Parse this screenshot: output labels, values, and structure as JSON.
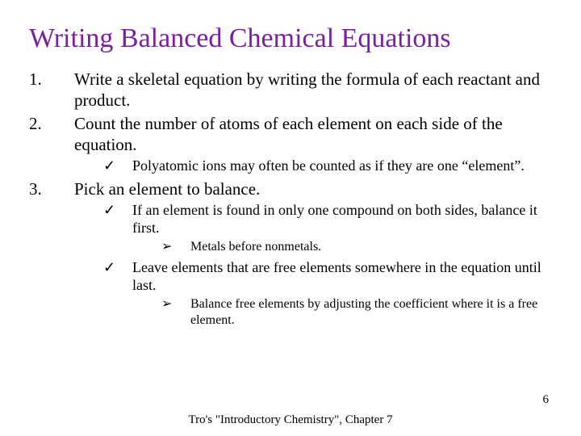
{
  "title": {
    "text": "Writing Balanced Chemical Equations",
    "color": "#7b1fa2",
    "fontsize": 34
  },
  "list": {
    "item1": {
      "num": "1.",
      "text": "Write a skeletal equation by writing the formula of each reactant and product."
    },
    "item2": {
      "num": "2.",
      "text": "Count the number of atoms of each element on each side of the equation.",
      "sub1": {
        "mark": "✓",
        "text": "Polyatomic ions may often be counted as if they are one “element”."
      }
    },
    "item3": {
      "num": "3.",
      "text": "Pick an element to balance.",
      "sub1": {
        "mark": "✓",
        "text": "If an element is found in only one compound on both sides, balance it first.",
        "subA": {
          "mark": "➢",
          "text": "Metals before nonmetals."
        }
      },
      "sub2": {
        "mark": "✓",
        "text": "Leave elements that are free elements somewhere in the equation until last.",
        "subA": {
          "mark": "➢",
          "text": "Balance free elements by adjusting the coefficient where it is a free element."
        }
      }
    }
  },
  "footer": {
    "center": "Tro's \"Introductory Chemistry\", Chapter 7",
    "pageNumber": "6"
  },
  "style": {
    "body_fontsize": 21,
    "sub_fontsize": 18,
    "subsub_fontsize": 16,
    "footer_fontsize": 15,
    "text_color": "#000000",
    "background": "#ffffff"
  }
}
